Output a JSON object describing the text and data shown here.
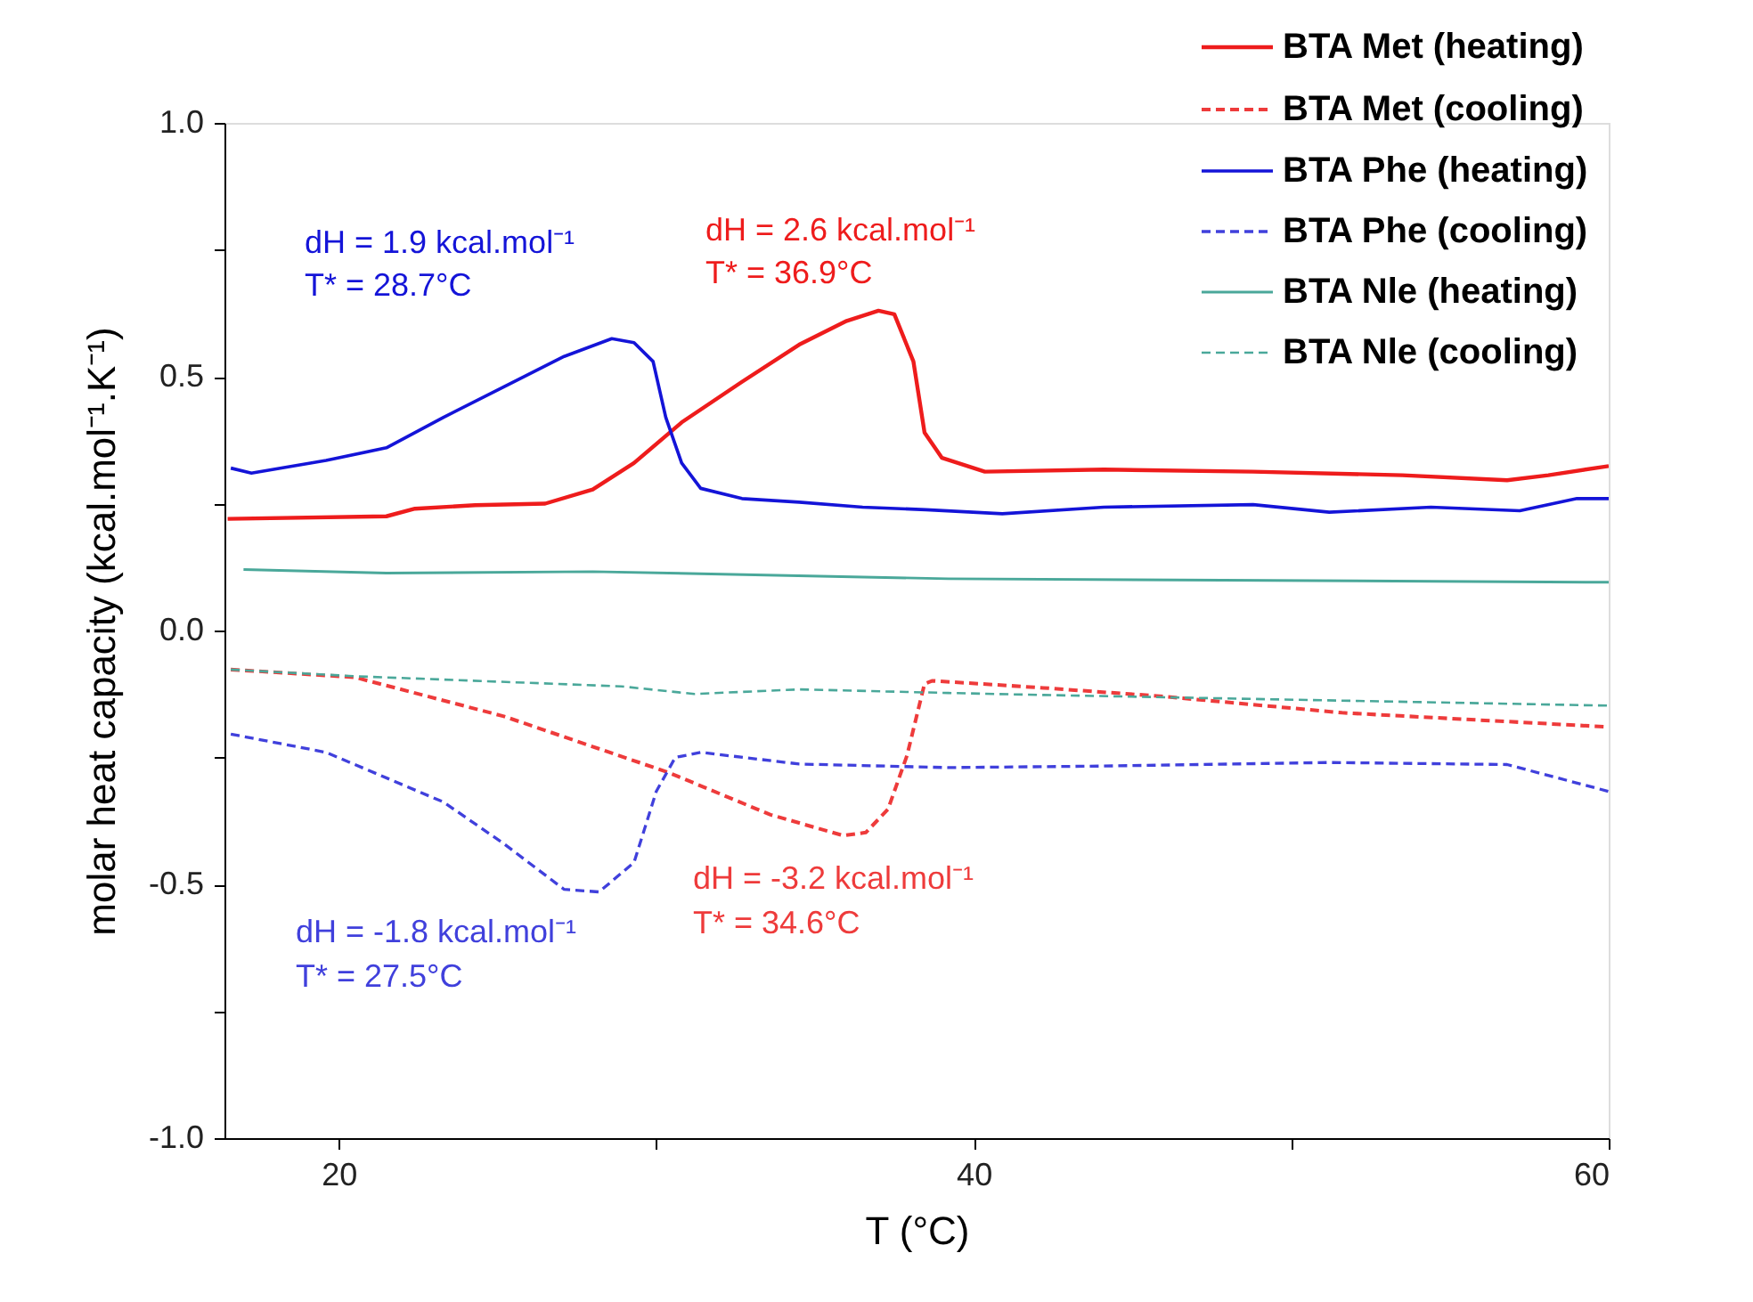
{
  "chart_data": {
    "type": "line",
    "xlabel": "T (°C)",
    "ylabel": "molar heat capacity (kcal.mol⁻¹.K⁻¹)",
    "xlim": [
      16.4,
      60
    ],
    "xticks": [
      20,
      {
        "value": 30,
        "label": null
      },
      40,
      {
        "value": 50,
        "label": null
      },
      60
    ],
    "ylim": [
      -1,
      1
    ],
    "yticks": [
      {
        "value": -1,
        "label": "-1.0"
      },
      {
        "value": -0.75,
        "label": null
      },
      {
        "value": -0.5,
        "label": "-0.5"
      },
      {
        "value": -0.25,
        "label": null
      },
      {
        "value": 0,
        "label": "0.0"
      },
      {
        "value": 0.25,
        "label": null
      },
      {
        "value": 0.5,
        "label": "0.5"
      },
      {
        "value": 0.75,
        "label": null
      },
      {
        "value": 1,
        "label": "1.0"
      }
    ],
    "grid": false,
    "legend": "top right",
    "series": [
      {
        "name": "BTA Met (heating)",
        "color": "#ee1c1c",
        "line_style": "solid",
        "x": [
          16.5,
          21.5,
          22.4,
          24.3,
          26.5,
          28.0,
          29.3,
          30.8,
          32.7,
          34.5,
          36.0,
          37.0,
          37.5,
          38.1,
          38.45,
          39.0,
          40.35,
          44.1,
          48.8,
          53.5,
          56.8,
          58.1,
          60
        ],
        "values": [
          0.22,
          0.225,
          0.24,
          0.247,
          0.25,
          0.278,
          0.33,
          0.41,
          0.49,
          0.563,
          0.61,
          0.63,
          0.623,
          0.53,
          0.39,
          0.34,
          0.313,
          0.317,
          0.313,
          0.306,
          0.296,
          0.306,
          0.324
        ]
      },
      {
        "name": "BTA Met (cooling)",
        "color": "#ee3b3b",
        "line_style": "dashed",
        "x": [
          16.6,
          20.5,
          25.2,
          30.4,
          33.6,
          35.9,
          36.6,
          37.3,
          37.9,
          38.45,
          38.7,
          42.2,
          46.0,
          51.6,
          60
        ],
        "values": [
          -0.077,
          -0.092,
          -0.169,
          -0.28,
          -0.363,
          -0.404,
          -0.398,
          -0.352,
          -0.246,
          -0.105,
          -0.099,
          -0.113,
          -0.13,
          -0.162,
          -0.19
        ]
      },
      {
        "name": "BTA Phe (heating)",
        "color": "#1414d8",
        "line_style": "solid",
        "x": [
          16.6,
          17.25,
          19.6,
          21.5,
          23.3,
          25.2,
          27.1,
          28.6,
          29.3,
          29.9,
          30.3,
          30.8,
          31.4,
          32.7,
          34.5,
          36.5,
          38.5,
          40.9,
          44.1,
          48.8,
          51.2,
          54.4,
          57.2,
          59.0,
          60
        ],
        "values": [
          0.32,
          0.31,
          0.335,
          0.36,
          0.42,
          0.48,
          0.54,
          0.575,
          0.567,
          0.53,
          0.42,
          0.33,
          0.28,
          0.26,
          0.253,
          0.243,
          0.238,
          0.23,
          0.243,
          0.248,
          0.233,
          0.243,
          0.236,
          0.26,
          0.26
        ]
      },
      {
        "name": "BTA Phe (cooling)",
        "color": "#4040dc",
        "line_style": "dashed",
        "x": [
          16.6,
          19.6,
          23.3,
          25.2,
          27.1,
          28.2,
          29.3,
          30.0,
          30.6,
          31.4,
          34.5,
          39.2,
          44.1,
          51.2,
          56.8,
          60
        ],
        "values": [
          -0.204,
          -0.24,
          -0.338,
          -0.42,
          -0.51,
          -0.515,
          -0.457,
          -0.317,
          -0.25,
          -0.24,
          -0.263,
          -0.27,
          -0.267,
          -0.26,
          -0.264,
          -0.317
        ]
      },
      {
        "name": "BTA Nle (heating)",
        "color": "#4aa89a",
        "line_style": "solid",
        "x": [
          17,
          21.5,
          28,
          39.2,
          60
        ],
        "values": [
          0.12,
          0.113,
          0.116,
          0.102,
          0.095
        ]
      },
      {
        "name": "BTA Nle (cooling)",
        "color": "#4aa89a",
        "line_style": "dashed",
        "x": [
          16.6,
          20.5,
          28.9,
          31.2,
          34.5,
          39.2,
          42.2,
          60
        ],
        "values": [
          -0.077,
          -0.09,
          -0.11,
          -0.125,
          -0.116,
          -0.123,
          -0.127,
          -0.148
        ]
      }
    ],
    "annotations": [
      "dH = 1.9 kcal.mol⁻¹",
      "T* = 28.7°C",
      "dH = 2.6 kcal.mol⁻¹",
      "T* = 36.9°C",
      "dH = -1.8 kcal.mol⁻¹",
      "T* = 27.5°C",
      "dH = -3.2 kcal.mol⁻¹",
      "T* = 34.6°C"
    ]
  }
}
